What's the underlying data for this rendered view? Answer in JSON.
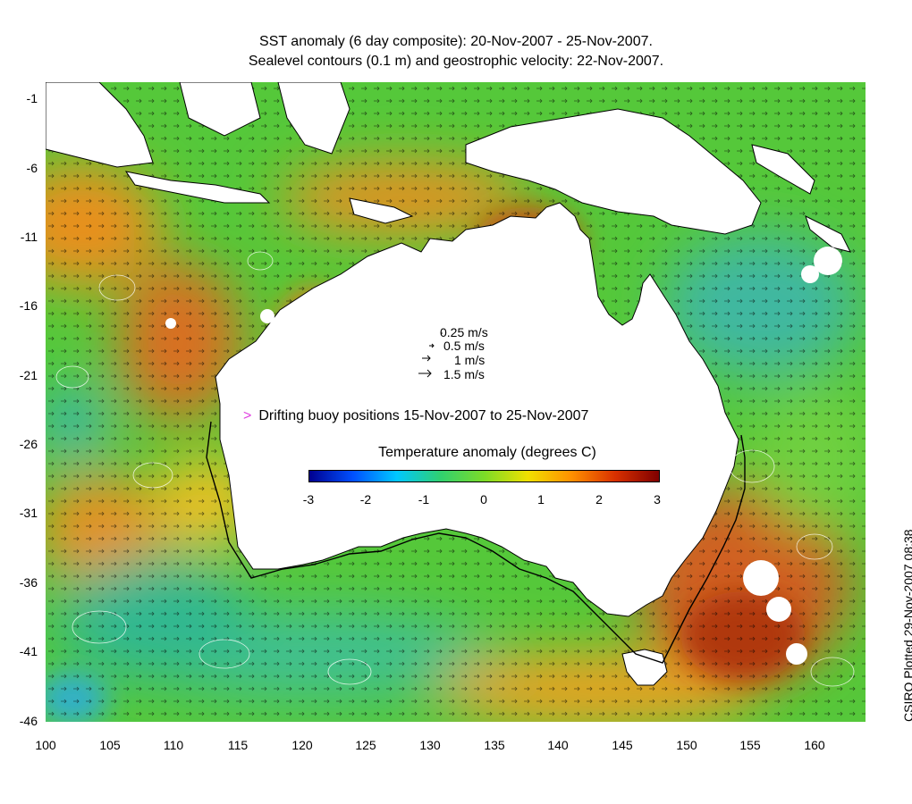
{
  "title_line1": "SST anomaly (6 day composite): 20-Nov-2007 - 25-Nov-2007.",
  "title_line2": "Sealevel contours (0.1 m) and geostrophic velocity: 22-Nov-2007.",
  "y_ticks": [
    "-1",
    "-6",
    "-11",
    "-16",
    "-21",
    "-26",
    "-31",
    "-36",
    "-41",
    "-46"
  ],
  "x_ticks": [
    "100",
    "105",
    "110",
    "115",
    "120",
    "125",
    "130",
    "135",
    "140",
    "145",
    "150",
    "155",
    "160"
  ],
  "map_extent": {
    "lon": [
      100,
      164
    ],
    "lat": [
      -46,
      0
    ]
  },
  "velocity_legend": [
    "0.25 m/s",
    "0.5 m/s",
    "1 m/s",
    "1.5 m/s"
  ],
  "buoy_label": "Drifting buoy positions 15-Nov-2007 to 25-Nov-2007",
  "buoy_marker": ">",
  "colorbar": {
    "title": "Temperature anomaly (degrees C)",
    "ticks": [
      "-3",
      "-2",
      "-1",
      "0",
      "1",
      "2",
      "3"
    ],
    "range": [
      -3,
      3
    ],
    "colors": [
      "#00008f",
      "#0050ff",
      "#00c8ff",
      "#30d070",
      "#7cdc28",
      "#f0e000",
      "#ff9000",
      "#d83000",
      "#7f0000"
    ]
  },
  "credit": "CSIRO Plotted 29-Nov-2007 08:38",
  "colors": {
    "ocean_main": "#55c83a",
    "warm": "#e8901e",
    "cool": "#30b8a8",
    "land": "#ffffff",
    "buoy": "#e040e0"
  }
}
